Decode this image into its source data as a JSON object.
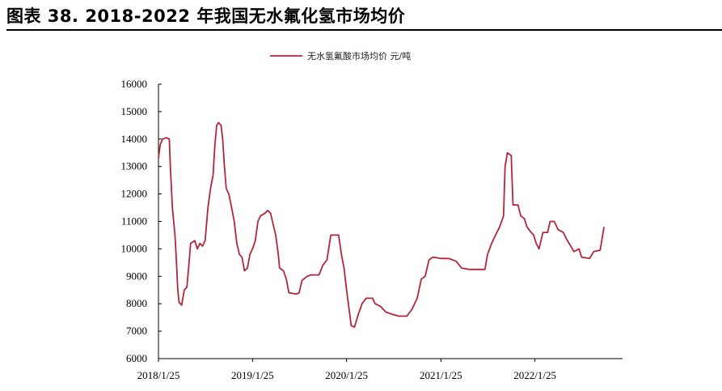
{
  "figure_title": "图表 38. 2018-2022 年我国无水氟化氢市场均价",
  "colors": {
    "series": "#b5253a",
    "axis": "#000000"
  },
  "chart_data": {
    "type": "line",
    "title": "图表 38. 2018-2022 年我国无水氟化氢市场均价",
    "xlabel": "",
    "ylabel": "",
    "ylim": [
      6000,
      16000
    ],
    "xlim": [
      "2018/1/25",
      "2022/12/31"
    ],
    "y_ticks": [
      "6000",
      "7000",
      "8000",
      "9000",
      "10000",
      "11000",
      "12000",
      "13000",
      "14000",
      "15000",
      "16000"
    ],
    "x_ticks": [
      "2018/1/25",
      "2019/1/25",
      "2020/1/25",
      "2021/1/25",
      "2022/1/25"
    ],
    "legend_position": "top-center",
    "series": [
      {
        "name": "无水氢氟酸市场均价 元/吨",
        "color": "#b5253a",
        "points": [
          [
            "2018-01-25",
            13300
          ],
          [
            "2018-02-01",
            13800
          ],
          [
            "2018-02-10",
            14000
          ],
          [
            "2018-02-25",
            14050
          ],
          [
            "2018-03-08",
            14000
          ],
          [
            "2018-03-12",
            13000
          ],
          [
            "2018-03-20",
            11500
          ],
          [
            "2018-03-30",
            10500
          ],
          [
            "2018-04-05",
            9500
          ],
          [
            "2018-04-10",
            8500
          ],
          [
            "2018-04-15",
            8050
          ],
          [
            "2018-04-25",
            7950
          ],
          [
            "2018-05-05",
            8500
          ],
          [
            "2018-05-15",
            8600
          ],
          [
            "2018-05-22",
            9300
          ],
          [
            "2018-05-30",
            10200
          ],
          [
            "2018-06-15",
            10300
          ],
          [
            "2018-06-25",
            10000
          ],
          [
            "2018-07-05",
            10200
          ],
          [
            "2018-07-15",
            10100
          ],
          [
            "2018-07-25",
            10300
          ],
          [
            "2018-08-05",
            11500
          ],
          [
            "2018-08-15",
            12200
          ],
          [
            "2018-08-25",
            12700
          ],
          [
            "2018-09-01",
            13800
          ],
          [
            "2018-09-08",
            14500
          ],
          [
            "2018-09-15",
            14600
          ],
          [
            "2018-09-25",
            14500
          ],
          [
            "2018-10-01",
            14000
          ],
          [
            "2018-10-08",
            13000
          ],
          [
            "2018-10-15",
            12200
          ],
          [
            "2018-10-25",
            12000
          ],
          [
            "2018-11-05",
            11500
          ],
          [
            "2018-11-15",
            11000
          ],
          [
            "2018-11-25",
            10200
          ],
          [
            "2018-12-05",
            9800
          ],
          [
            "2018-12-15",
            9700
          ],
          [
            "2018-12-25",
            9200
          ],
          [
            "2019-01-05",
            9300
          ],
          [
            "2019-01-15",
            9800
          ],
          [
            "2019-01-25",
            10000
          ],
          [
            "2019-02-05",
            10300
          ],
          [
            "2019-02-15",
            11000
          ],
          [
            "2019-02-25",
            11200
          ],
          [
            "2019-03-15",
            11300
          ],
          [
            "2019-03-25",
            11400
          ],
          [
            "2019-04-05",
            11300
          ],
          [
            "2019-04-15",
            10900
          ],
          [
            "2019-04-25",
            10500
          ],
          [
            "2019-05-05",
            9800
          ],
          [
            "2019-05-10",
            9300
          ],
          [
            "2019-05-25",
            9200
          ],
          [
            "2019-06-05",
            8900
          ],
          [
            "2019-06-15",
            8400
          ],
          [
            "2019-07-15",
            8350
          ],
          [
            "2019-07-25",
            8400
          ],
          [
            "2019-08-05",
            8850
          ],
          [
            "2019-08-25",
            9000
          ],
          [
            "2019-09-10",
            9050
          ],
          [
            "2019-10-10",
            9050
          ],
          [
            "2019-10-25",
            9400
          ],
          [
            "2019-11-10",
            9600
          ],
          [
            "2019-11-25",
            10500
          ],
          [
            "2019-12-25",
            10500
          ],
          [
            "2020-01-05",
            9800
          ],
          [
            "2020-01-15",
            9300
          ],
          [
            "2020-01-25",
            8500
          ],
          [
            "2020-02-05",
            7700
          ],
          [
            "2020-02-12",
            7200
          ],
          [
            "2020-02-25",
            7150
          ],
          [
            "2020-03-10",
            7600
          ],
          [
            "2020-03-25",
            8000
          ],
          [
            "2020-04-10",
            8200
          ],
          [
            "2020-05-05",
            8200
          ],
          [
            "2020-05-15",
            8000
          ],
          [
            "2020-06-05",
            7900
          ],
          [
            "2020-06-25",
            7700
          ],
          [
            "2020-07-25",
            7600
          ],
          [
            "2020-08-15",
            7550
          ],
          [
            "2020-09-15",
            7550
          ],
          [
            "2020-10-05",
            7800
          ],
          [
            "2020-10-25",
            8200
          ],
          [
            "2020-11-10",
            8900
          ],
          [
            "2020-11-25",
            9000
          ],
          [
            "2020-12-10",
            9600
          ],
          [
            "2020-12-25",
            9700
          ],
          [
            "2021-01-25",
            9650
          ],
          [
            "2021-02-25",
            9650
          ],
          [
            "2021-03-25",
            9550
          ],
          [
            "2021-04-15",
            9300
          ],
          [
            "2021-05-15",
            9250
          ],
          [
            "2021-06-15",
            9250
          ],
          [
            "2021-07-15",
            9250
          ],
          [
            "2021-07-25",
            9800
          ],
          [
            "2021-08-10",
            10200
          ],
          [
            "2021-08-25",
            10500
          ],
          [
            "2021-09-10",
            10800
          ],
          [
            "2021-09-25",
            11200
          ],
          [
            "2021-10-01",
            13000
          ],
          [
            "2021-10-10",
            13500
          ],
          [
            "2021-10-25",
            13400
          ],
          [
            "2021-11-01",
            11600
          ],
          [
            "2021-11-20",
            11600
          ],
          [
            "2021-12-01",
            11200
          ],
          [
            "2021-12-15",
            11100
          ],
          [
            "2021-12-25",
            10800
          ],
          [
            "2022-01-10",
            10600
          ],
          [
            "2022-01-20",
            10500
          ],
          [
            "2022-01-30",
            10200
          ],
          [
            "2022-02-10",
            10000
          ],
          [
            "2022-02-25",
            10600
          ],
          [
            "2022-03-15",
            10600
          ],
          [
            "2022-03-25",
            11000
          ],
          [
            "2022-04-10",
            11000
          ],
          [
            "2022-04-25",
            10700
          ],
          [
            "2022-05-15",
            10600
          ],
          [
            "2022-05-25",
            10400
          ],
          [
            "2022-06-25",
            9900
          ],
          [
            "2022-07-15",
            10000
          ],
          [
            "2022-07-25",
            9700
          ],
          [
            "2022-08-25",
            9650
          ],
          [
            "2022-09-10",
            9900
          ],
          [
            "2022-10-05",
            9950
          ],
          [
            "2022-10-20",
            10800
          ]
        ]
      }
    ]
  }
}
